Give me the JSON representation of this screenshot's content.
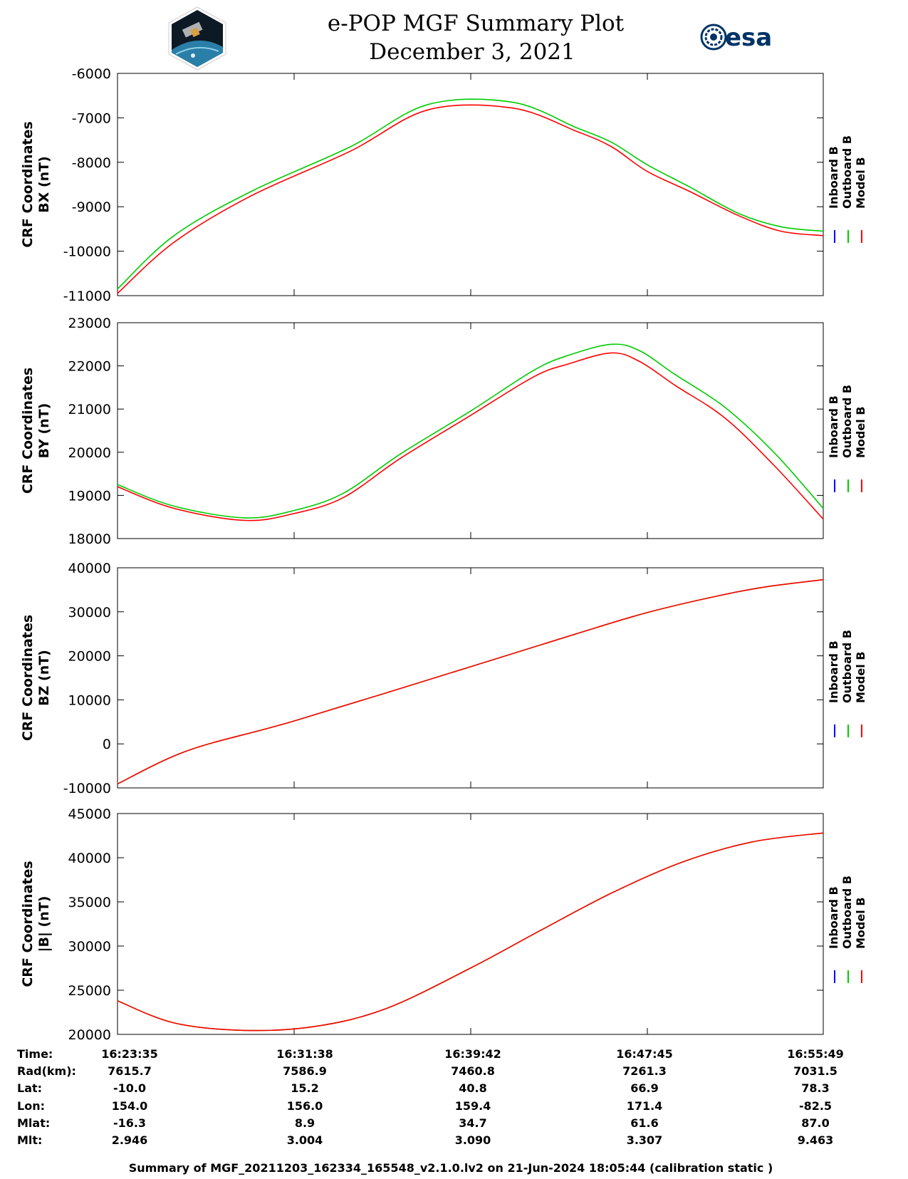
{
  "header": {
    "title": "e-POP MGF Summary Plot",
    "date": "December 3, 2021",
    "left_logo_name": "cassiope-mission-patch",
    "right_logo_text": "esa"
  },
  "legend_labels": [
    "Inboard B",
    "Outboard B",
    "Model B"
  ],
  "colors": {
    "inboard": "#0000ff",
    "outboard": "#00cc00",
    "model": "#ff0000",
    "axis": "#000000"
  },
  "ephemeris": {
    "row_labels": [
      "Time:",
      "Rad(km):",
      "Lat:",
      "Lon:",
      "Mlat:",
      "Mlt:"
    ],
    "columns": [
      [
        "16:23:35",
        "7615.7",
        "-10.0",
        "154.0",
        "-16.3",
        "2.946"
      ],
      [
        "16:31:38",
        "7586.9",
        "15.2",
        "156.0",
        "8.9",
        "3.004"
      ],
      [
        "16:39:42",
        "7460.8",
        "40.8",
        "159.4",
        "34.7",
        "3.090"
      ],
      [
        "16:47:45",
        "7261.3",
        "66.9",
        "171.4",
        "61.6",
        "3.307"
      ],
      [
        "16:55:49",
        "7031.5",
        "78.3",
        "-82.5",
        "87.0",
        "9.463"
      ]
    ]
  },
  "footer": "Summary of MGF_20211203_162334_165548_v2.1.0.lv2 on 21-Jun-2024 18:05:44 (calibration static )",
  "chart_data": [
    {
      "type": "line",
      "ylabel_line1": "CRF Coordinates",
      "ylabel_line2": "BX (nT)",
      "ylim": [
        -11000,
        -6000
      ],
      "yticks": [
        -11000,
        -10000,
        -9000,
        -8000,
        -7000,
        -6000
      ],
      "ytick_labels": [
        "-11000",
        "-10000",
        "-9000",
        "-8000",
        "-7000",
        "-6000"
      ],
      "x": [
        0,
        0.08,
        0.19,
        0.33,
        0.44,
        0.56,
        0.65,
        0.7,
        0.75,
        0.81,
        0.88,
        0.94,
        1.0
      ],
      "series": [
        {
          "name": "Outboard B",
          "values": [
            -10850,
            -9650,
            -8650,
            -7650,
            -6700,
            -6650,
            -7220,
            -7550,
            -8050,
            -8550,
            -9150,
            -9450,
            -9550
          ]
        },
        {
          "name": "Model B",
          "values": [
            -10950,
            -9800,
            -8750,
            -7750,
            -6820,
            -6780,
            -7300,
            -7650,
            -8200,
            -8650,
            -9200,
            -9550,
            -9650
          ]
        }
      ]
    },
    {
      "type": "line",
      "ylabel_line1": "CRF Coordinates",
      "ylabel_line2": "BY (nT)",
      "ylim": [
        18000,
        23000
      ],
      "yticks": [
        18000,
        19000,
        20000,
        21000,
        22000,
        23000
      ],
      "ytick_labels": [
        "18000",
        "19000",
        "20000",
        "21000",
        "22000",
        "23000"
      ],
      "x": [
        0,
        0.08,
        0.18,
        0.25,
        0.32,
        0.4,
        0.5,
        0.59,
        0.64,
        0.7,
        0.74,
        0.79,
        0.86,
        0.93,
        1.0
      ],
      "series": [
        {
          "name": "Outboard B",
          "values": [
            19250,
            18750,
            18480,
            18650,
            19050,
            19950,
            20950,
            21900,
            22250,
            22500,
            22350,
            21800,
            21050,
            20000,
            18700
          ]
        },
        {
          "name": "Model B",
          "values": [
            19200,
            18700,
            18420,
            18580,
            18950,
            19850,
            20850,
            21750,
            22050,
            22300,
            22100,
            21550,
            20800,
            19700,
            18450
          ]
        }
      ]
    },
    {
      "type": "line",
      "ylabel_line1": "CRF Coordinates",
      "ylabel_line2": "BZ (nT)",
      "ylim": [
        -10000,
        40000
      ],
      "yticks": [
        -10000,
        0,
        10000,
        20000,
        30000,
        40000
      ],
      "ytick_labels": [
        "-10000",
        "0",
        "10000",
        "20000",
        "30000",
        "40000"
      ],
      "x": [
        0,
        0.1,
        0.25,
        0.5,
        0.65,
        0.75,
        0.85,
        0.92,
        1.0
      ],
      "series": [
        {
          "name": "Outboard B",
          "values": [
            -9100,
            -1500,
            5200,
            17500,
            25000,
            29800,
            33600,
            35700,
            37300
          ]
        },
        {
          "name": "Model B",
          "values": [
            -9100,
            -1500,
            5200,
            17500,
            25000,
            29800,
            33600,
            35700,
            37300
          ]
        }
      ]
    },
    {
      "type": "line",
      "ylabel_line1": "CRF Coordinates",
      "ylabel_line2": "|B| (nT)",
      "ylim": [
        20000,
        45000
      ],
      "yticks": [
        20000,
        25000,
        30000,
        35000,
        40000,
        45000
      ],
      "ytick_labels": [
        "20000",
        "25000",
        "30000",
        "35000",
        "40000",
        "45000"
      ],
      "x": [
        0,
        0.08,
        0.18,
        0.28,
        0.38,
        0.5,
        0.6,
        0.7,
        0.8,
        0.9,
        1.0
      ],
      "series": [
        {
          "name": "Outboard B",
          "values": [
            23800,
            21300,
            20450,
            20900,
            22900,
            27500,
            31800,
            36000,
            39500,
            41800,
            42800
          ]
        },
        {
          "name": "Model B",
          "values": [
            23800,
            21300,
            20450,
            20900,
            22900,
            27500,
            31800,
            36000,
            39500,
            41800,
            42800
          ]
        }
      ]
    }
  ]
}
